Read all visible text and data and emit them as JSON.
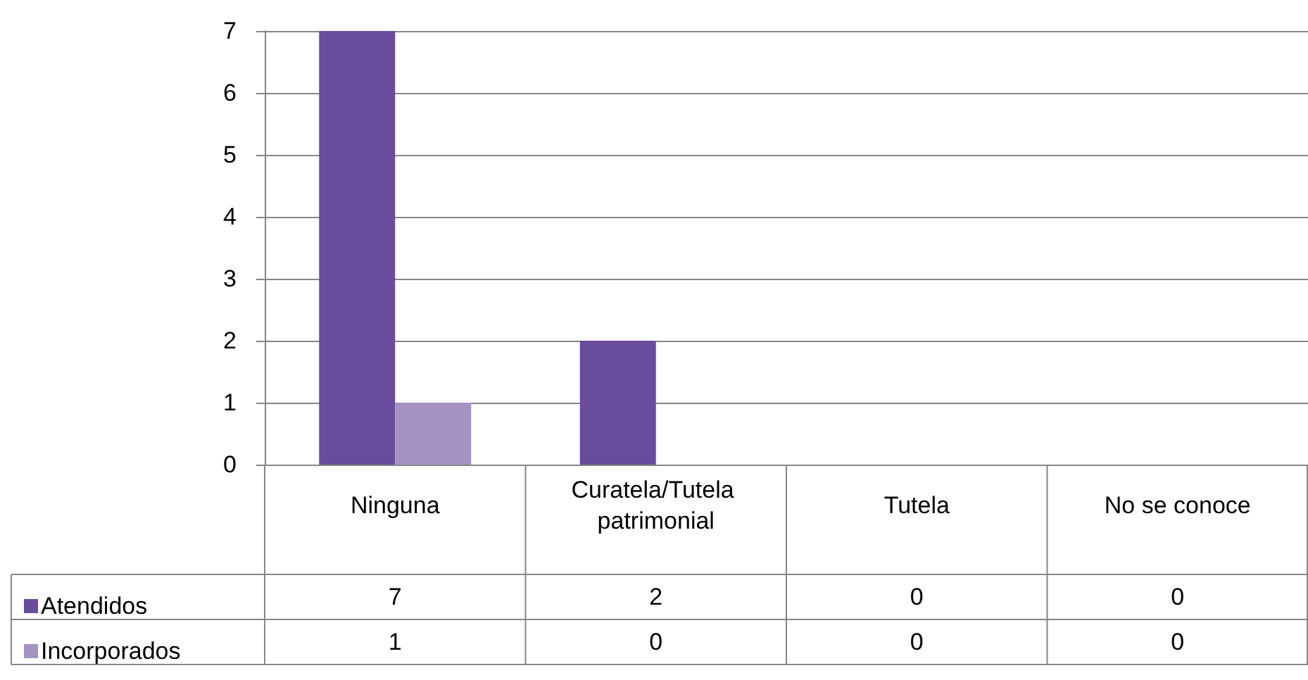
{
  "chart_data": {
    "type": "bar",
    "categories": [
      "Ninguna",
      "Curatela/Tutela patrimonial",
      "Tutela",
      "No se conoce"
    ],
    "series": [
      {
        "name": "Atendidos",
        "color": "#6a4c9c",
        "values": [
          7,
          2,
          0,
          0
        ]
      },
      {
        "name": "Incorporados",
        "color": "#a593c4",
        "values": [
          1,
          0,
          0,
          0
        ]
      }
    ],
    "ylim": [
      0,
      7
    ],
    "yticks": [
      0,
      1,
      2,
      3,
      4,
      5,
      6,
      7
    ],
    "grid": "y",
    "legend": "bottom left",
    "data_labels": true
  }
}
